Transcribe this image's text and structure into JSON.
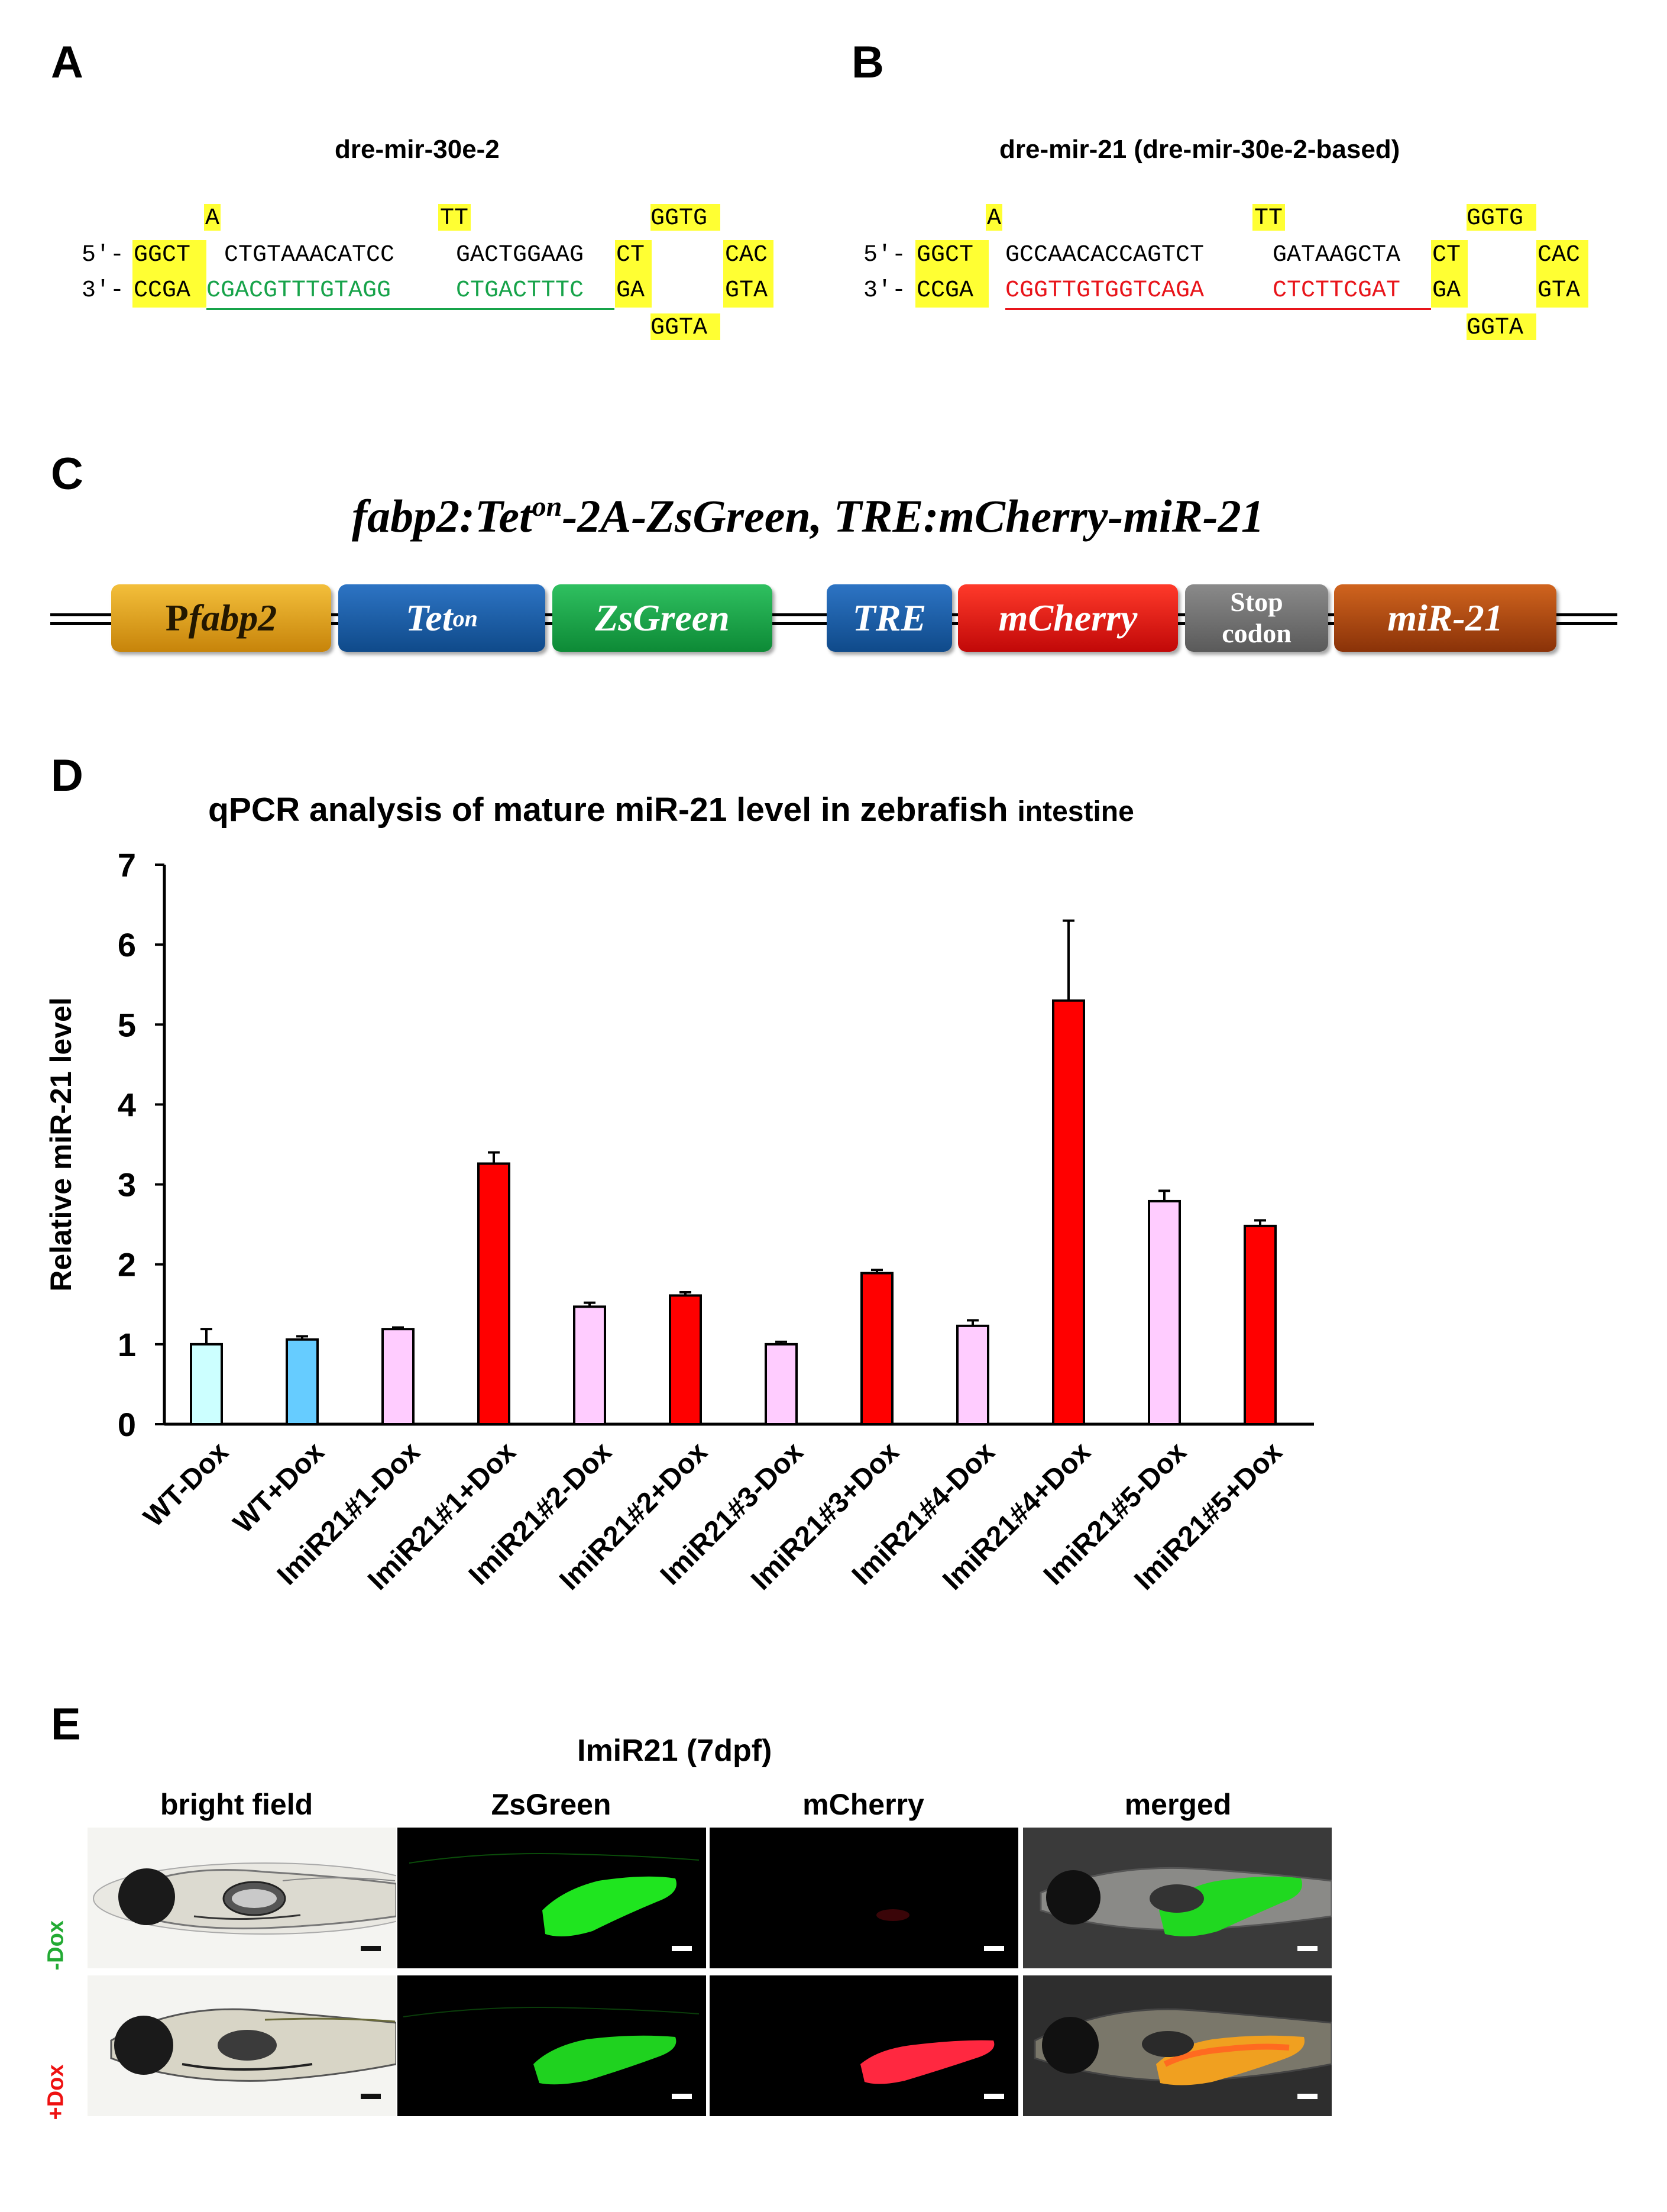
{
  "panels": {
    "A": {
      "label": "A",
      "title": "dre-mir-30e-2",
      "top_bulge": {
        "b1": "A",
        "b2": "TT",
        "loop": "GGTG"
      },
      "line5": {
        "prefix": "5′-",
        "stem": "GGCT",
        "seq1": "CTGTAAACATCC",
        "seq2": "GACTGGAAG",
        "ct": "CT",
        "loop": "CAC"
      },
      "line3": {
        "prefix": "3′-",
        "stem": "CCGA",
        "seq1": "CGACGTTTGTAGG",
        "seq2": "CTGACTTTC",
        "ga": "GA",
        "loop": "GTA"
      },
      "bottom_loop": "GGTA",
      "mature_color": "#17a34a"
    },
    "B": {
      "label": "B",
      "title": "dre-mir-21 (dre-mir-30e-2-based)",
      "top_bulge": {
        "b1": "A",
        "b2": "TT",
        "loop": "GGTG"
      },
      "line5": {
        "prefix": "5′-",
        "stem": "GGCT",
        "seq1": "GCCAACACCAGTCT",
        "seq2": "GATAAGCTA",
        "ct": "CT",
        "loop": "CAC"
      },
      "line3": {
        "prefix": "3′-",
        "stem": "CCGA",
        "seq1": "CGGTTGTGGTCAGA",
        "seq2": "CTCTTCGAT",
        "ga": "GA",
        "loop": "GTA"
      },
      "bottom_loop": "GGTA",
      "mature_color": "#e8141a"
    },
    "C": {
      "label": "C",
      "construct_title": {
        "a": "fabp2:Tet",
        "sup": "on",
        "b": "-2A-ZsGreen, TRE:mCherry-miR-21"
      },
      "elements": [
        {
          "id": "pfabp2",
          "p": "P",
          "name": "fabp2",
          "color": "#e8a216"
        },
        {
          "id": "teton",
          "name": "Tet",
          "sup": "on",
          "color": "#1d5da8"
        },
        {
          "id": "zsgreen",
          "name": "ZsGreen",
          "color": "#17a344"
        },
        {
          "id": "tre",
          "name": "TRE",
          "color": "#1d5da8"
        },
        {
          "id": "mcherry",
          "name": "mCherry",
          "color": "#e01414"
        },
        {
          "id": "stop",
          "name1": "Stop",
          "name2": "codon",
          "color": "#6f6f6f"
        },
        {
          "id": "mir21",
          "name": "miR-21",
          "color": "#b1480f"
        }
      ]
    },
    "D": {
      "label": "D"
    },
    "E": {
      "label": "E",
      "title": "ImiR21 (7dpf)",
      "columns": [
        "bright field",
        "ZsGreen",
        "mCherry",
        "merged"
      ],
      "rows": [
        {
          "label": "-Dox",
          "color": "#22aa33"
        },
        {
          "label": "+Dox",
          "color": "#ee1111"
        }
      ]
    }
  },
  "chart_data": {
    "type": "bar",
    "title": "qPCR analysis of mature miR-21 level in zebrafish",
    "title_suffix": "intestine",
    "ylabel": "Relative miR-21 level",
    "xlabel": "",
    "ylim": [
      0,
      7
    ],
    "yticks": [
      0,
      1,
      2,
      3,
      4,
      5,
      6,
      7
    ],
    "grid": false,
    "categories": [
      "WT-Dox",
      "WT+Dox",
      "ImiR21#1-Dox",
      "ImiR21#1+Dox",
      "ImiR21#2-Dox",
      "ImiR21#2+Dox",
      "ImiR21#3-Dox",
      "ImiR21#3+Dox",
      "ImiR21#4-Dox",
      "ImiR21#4+Dox",
      "ImiR21#5-Dox",
      "ImiR21#5+Dox"
    ],
    "values": [
      1.0,
      1.06,
      1.19,
      3.26,
      1.47,
      1.61,
      1.0,
      1.89,
      1.23,
      5.3,
      2.79,
      2.48
    ],
    "errors": [
      0.19,
      0.04,
      0.02,
      0.14,
      0.05,
      0.04,
      0.03,
      0.04,
      0.07,
      1.0,
      0.13,
      0.07
    ],
    "colors": [
      "#ccffff",
      "#66ccff",
      "#ffccff",
      "#ff0000",
      "#ffccff",
      "#ff0000",
      "#ffccff",
      "#ff0000",
      "#ffccff",
      "#ff0000",
      "#ffccff",
      "#ff0000"
    ]
  }
}
